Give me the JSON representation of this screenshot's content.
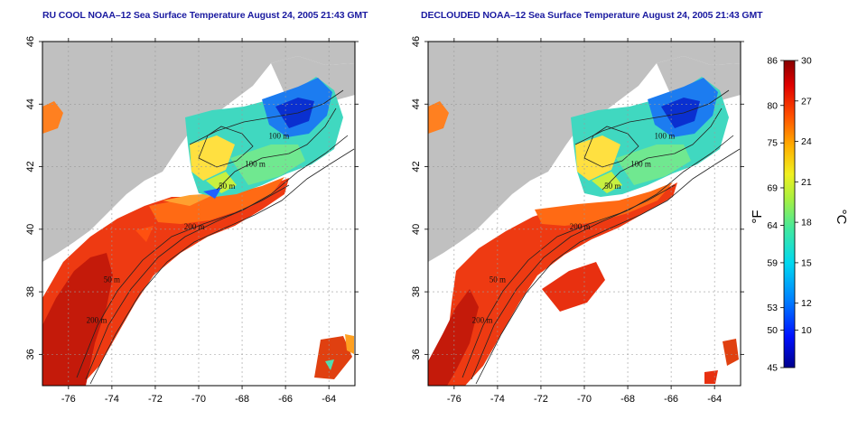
{
  "panels": [
    {
      "title": "RU COOL NOAA–12 Sea Surface Temperature August 24, 2005 21:43 GMT",
      "variant": "cool"
    },
    {
      "title": "DECLOUDED NOAA–12 Sea Surface Temperature August 24, 2005 21:43 GMT",
      "variant": "declouded"
    }
  ],
  "map_axes": {
    "lon_ticks": [
      -76,
      -74,
      -72,
      -70,
      -68,
      -66,
      -64
    ],
    "lat_ticks": [
      36,
      38,
      40,
      42,
      44,
      46
    ],
    "lon_range": [
      -77.2,
      -62.8
    ],
    "lat_range": [
      35.0,
      46.0
    ]
  },
  "contour_labels": [
    {
      "text": "100 m",
      "lon": -66.3,
      "lat": 42.9
    },
    {
      "text": "100 m",
      "lon": -67.4,
      "lat": 42.0
    },
    {
      "text": "50 m",
      "lon": -68.7,
      "lat": 41.3
    },
    {
      "text": "200 m",
      "lon": -70.2,
      "lat": 40.0
    },
    {
      "text": "50 m",
      "lon": -74.0,
      "lat": 38.3
    },
    {
      "text": "200 m",
      "lon": -74.7,
      "lat": 37.0
    }
  ],
  "colorbar": {
    "fahrenheit_ticks": [
      "86",
      "80",
      "75",
      "69",
      "64",
      "59",
      "53",
      "50",
      "45"
    ],
    "fahrenheit_values": [
      86,
      80,
      75,
      69,
      64,
      59,
      53,
      50,
      45
    ],
    "celsius_ticks": [
      "30",
      "27",
      "24",
      "21",
      "18",
      "15",
      "12",
      "10"
    ],
    "celsius_values": [
      30,
      27,
      24,
      21,
      18,
      15,
      12,
      10
    ],
    "fahrenheit_unit": "°F",
    "celsius_unit": "°C",
    "range_f": [
      45,
      86
    ]
  },
  "colors": {
    "land": "#c0c0c0",
    "ocean_cloud": "#ffffff",
    "title": "#1a1aa0",
    "gridline": "#9a9a9a"
  }
}
